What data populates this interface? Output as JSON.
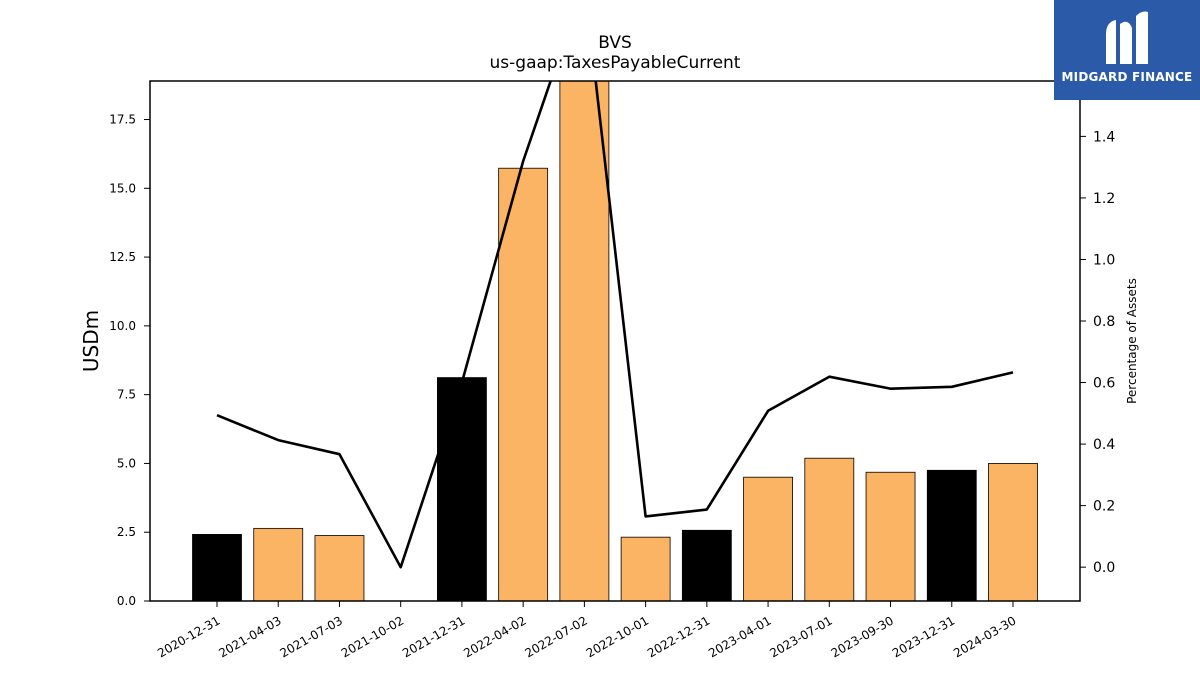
{
  "chart_data": {
    "type": "bar",
    "title": "BVS",
    "subtitle": "us-gaap:TaxesPayableCurrent",
    "ylabel": "USDm",
    "y2label": "Percentage of Assets",
    "ylim": [
      0,
      18.9
    ],
    "y2lim": [
      -0.11,
      1.58
    ],
    "yticks": [
      "0.0",
      "2.5",
      "5.0",
      "7.5",
      "10.0",
      "12.5",
      "15.0",
      "17.5"
    ],
    "y2ticks": [
      "0.0",
      "0.2",
      "0.4",
      "0.6",
      "0.8",
      "1.0",
      "1.2",
      "1.4"
    ],
    "categories": [
      "2020-12-31",
      "2021-04-03",
      "2021-07-03",
      "2021-10-02",
      "2021-12-31",
      "2022-04-02",
      "2022-07-02",
      "2022-10-01",
      "2022-12-31",
      "2023-04-01",
      "2023-07-01",
      "2023-09-30",
      "2023-12-31",
      "2024-03-30"
    ],
    "series": [
      {
        "type": "bar",
        "values": [
          2.42,
          2.64,
          2.38,
          0.0,
          8.12,
          15.73,
          19.5,
          2.32,
          2.57,
          4.5,
          5.19,
          4.68,
          4.75,
          5.0
        ],
        "colors": [
          "#000000",
          "#fbb463",
          "#fbb463",
          "#fbb463",
          "#000000",
          "#fbb463",
          "#fbb463",
          "#fbb463",
          "#000000",
          "#fbb463",
          "#fbb463",
          "#fbb463",
          "#000000",
          "#fbb463"
        ]
      },
      {
        "type": "line",
        "axis": "right",
        "values": [
          0.494,
          0.413,
          0.367,
          0.0,
          0.6,
          1.32,
          1.9,
          0.165,
          0.187,
          0.508,
          0.619,
          0.58,
          0.586,
          0.633
        ],
        "color": "#000000"
      }
    ]
  },
  "logo": {
    "text": "MIDGARD FINANCE",
    "color": "#2b5aa8"
  }
}
